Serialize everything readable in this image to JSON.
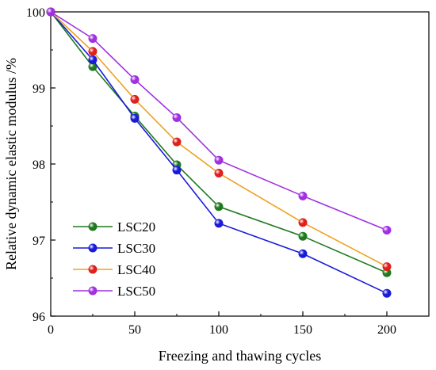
{
  "chart_data": {
    "type": "line",
    "title": "",
    "xlabel": "Freezing and thawing cycles",
    "ylabel": "Relative dynamic elastic modulus /%",
    "xlim": [
      0,
      225
    ],
    "ylim": [
      96,
      100
    ],
    "xticks": [
      0,
      50,
      100,
      150,
      200
    ],
    "yticks": [
      96,
      97,
      98,
      99,
      100
    ],
    "grid": false,
    "legend_position": "bottom-left",
    "x": [
      0,
      25,
      50,
      75,
      100,
      150,
      200
    ],
    "series": [
      {
        "name": "LSC20",
        "color": "#1f7a1f",
        "values": [
          100,
          99.28,
          98.63,
          97.99,
          97.44,
          97.05,
          96.57
        ]
      },
      {
        "name": "LSC30",
        "color": "#1a1adb",
        "values": [
          100,
          99.37,
          98.6,
          97.92,
          97.22,
          96.82,
          96.3
        ]
      },
      {
        "name": "LSC40",
        "color": "#f0a020",
        "marker_color": "#e0201a",
        "values": [
          100,
          99.48,
          98.85,
          98.29,
          97.88,
          97.23,
          96.65
        ]
      },
      {
        "name": "LSC50",
        "color": "#a030e0",
        "values": [
          100,
          99.65,
          99.11,
          98.61,
          98.05,
          97.58,
          97.13
        ]
      }
    ]
  }
}
